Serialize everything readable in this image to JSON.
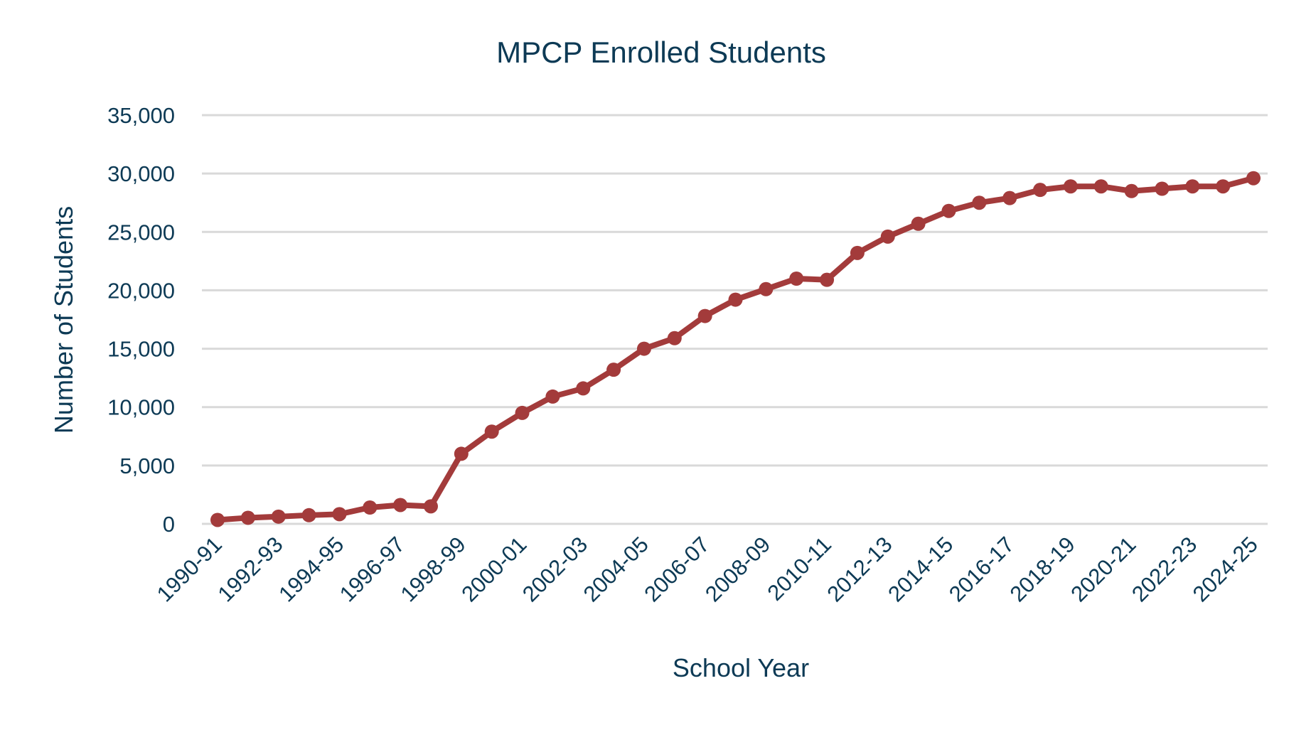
{
  "chart_data": {
    "type": "line",
    "title": "MPCP Enrolled Students",
    "xlabel": "School Year",
    "ylabel": "Number of Students",
    "ylim": [
      0,
      35000
    ],
    "yticks": [
      0,
      5000,
      10000,
      15000,
      20000,
      25000,
      30000,
      35000
    ],
    "ytick_labels": [
      "0",
      "5,000",
      "10,000",
      "15,000",
      "20,000",
      "25,000",
      "30,000",
      "35,000"
    ],
    "grid": "horizontal",
    "legend": "none",
    "line_color": "#a33b3b",
    "text_color": "#0d3a55",
    "grid_color": "#d9d9d9",
    "categories": [
      "1990-91",
      "1991-92",
      "1992-93",
      "1993-94",
      "1994-95",
      "1995-96",
      "1996-97",
      "1997-98",
      "1998-99",
      "1999-00",
      "2000-01",
      "2001-02",
      "2002-03",
      "2003-04",
      "2004-05",
      "2005-06",
      "2006-07",
      "2007-08",
      "2008-09",
      "2009-10",
      "2010-11",
      "2011-12",
      "2012-13",
      "2013-14",
      "2014-15",
      "2015-16",
      "2016-17",
      "2017-18",
      "2018-19",
      "2019-20",
      "2020-21",
      "2021-22",
      "2022-23",
      "2023-24",
      "2024-25"
    ],
    "xtick_labels": [
      "1990-91",
      "1992-93",
      "1994-95",
      "1996-97",
      "1998-99",
      "2000-01",
      "2002-03",
      "2004-05",
      "2006-07",
      "2008-09",
      "2010-11",
      "2012-13",
      "2014-15",
      "2016-17",
      "2018-19",
      "2020-21",
      "2022-23",
      "2024-25"
    ],
    "values": [
      337,
      521,
      620,
      742,
      830,
      1400,
      1616,
      1501,
      6000,
      7900,
      9500,
      10900,
      11600,
      13200,
      15000,
      15900,
      17800,
      19200,
      20100,
      21000,
      20900,
      23200,
      24600,
      25700,
      26800,
      27500,
      27900,
      28600,
      28900,
      28900,
      28500,
      28700,
      28900,
      28900,
      29600
    ]
  }
}
